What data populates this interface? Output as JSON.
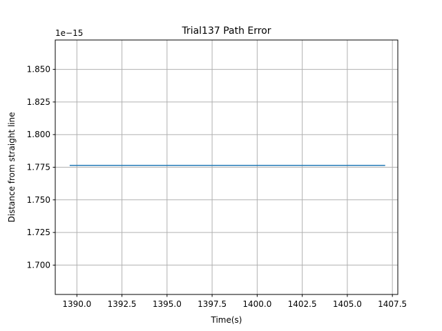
{
  "chart_data": {
    "type": "line",
    "title": "Trial137 Path Error",
    "xlabel": "Time(s)",
    "ylabel": "Distance from straight line",
    "y_offset_label": "1e−15",
    "xlim": [
      1388.8,
      1407.8
    ],
    "ylim": [
      1.6775,
      1.8725
    ],
    "x_ticks": [
      1390.0,
      1392.5,
      1395.0,
      1397.5,
      1400.0,
      1402.5,
      1405.0,
      1407.5
    ],
    "x_tick_labels": [
      "1390.0",
      "1392.5",
      "1395.0",
      "1397.5",
      "1400.0",
      "1402.5",
      "1405.0",
      "1407.5"
    ],
    "y_ticks": [
      1.7,
      1.725,
      1.75,
      1.775,
      1.8,
      1.825,
      1.85
    ],
    "y_tick_labels": [
      "1.700",
      "1.725",
      "1.750",
      "1.775",
      "1.800",
      "1.825",
      "1.850"
    ],
    "grid": true,
    "series": [
      {
        "color": "#1f77b4",
        "x": [
          1389.6,
          1407.1
        ],
        "y": [
          1.7764,
          1.7764
        ]
      }
    ]
  }
}
